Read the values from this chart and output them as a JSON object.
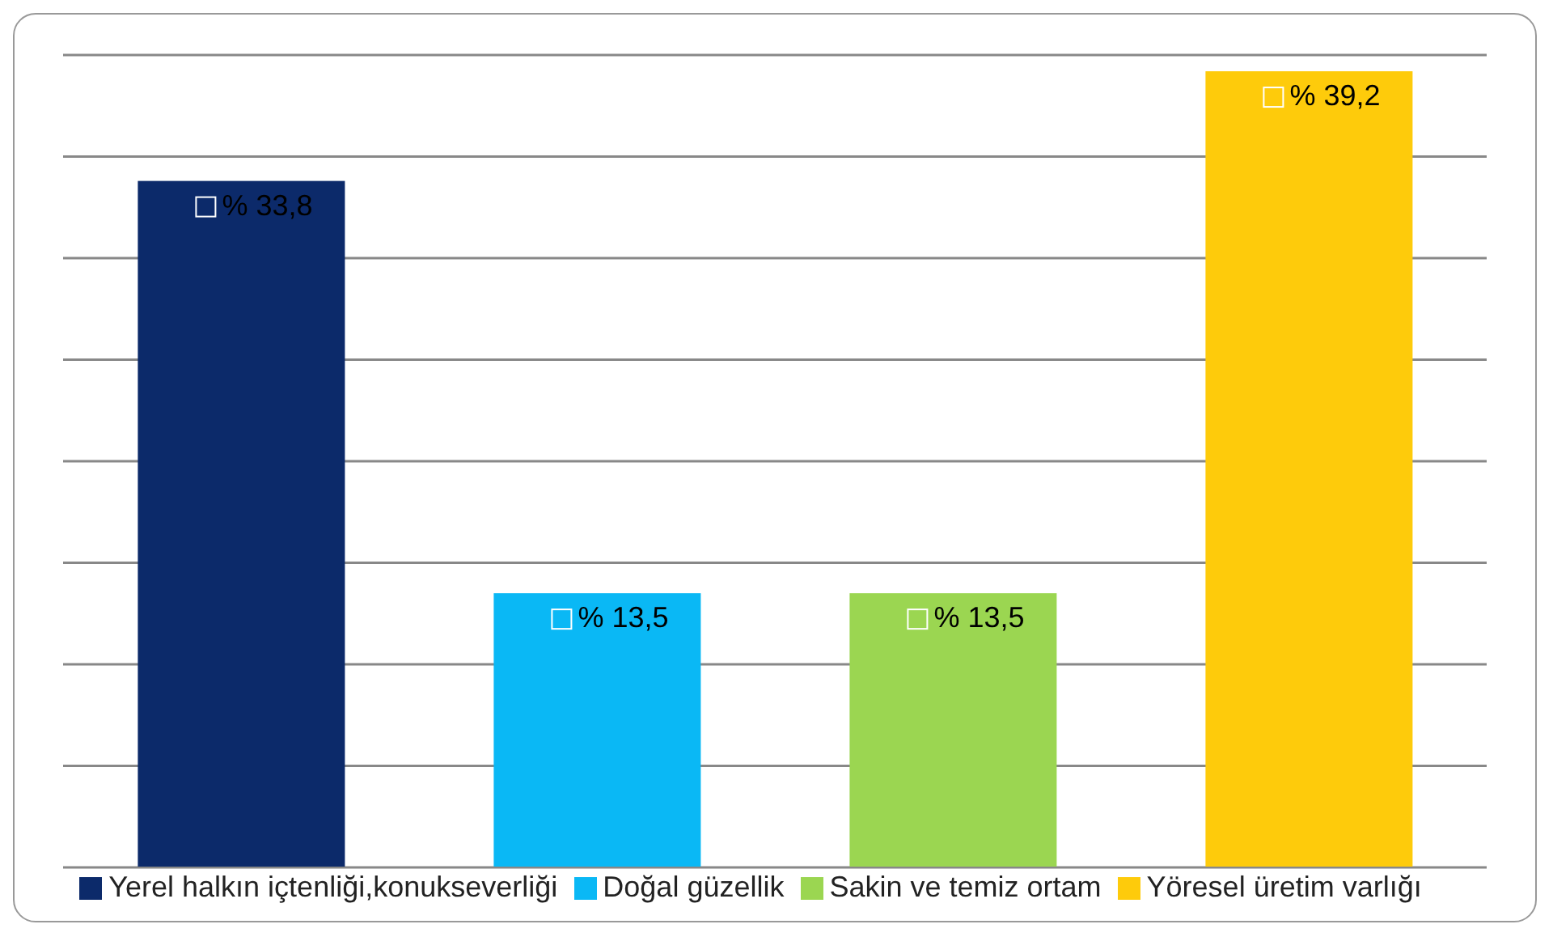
{
  "chart_data": {
    "type": "bar",
    "categories": [
      null,
      null,
      null,
      null
    ],
    "stacked": true,
    "series": [
      {
        "name": "Yerel halkın içtenliği,konukseverliği",
        "color": "#0c2a6a",
        "values": [
          33.8,
          null,
          null,
          null
        ],
        "value_labels": [
          "% 33,8",
          null,
          null,
          null
        ]
      },
      {
        "name": "Doğal güzellik",
        "color": "#0ab8f5",
        "values": [
          null,
          13.5,
          null,
          null
        ],
        "value_labels": [
          null,
          "% 13,5",
          null,
          null
        ]
      },
      {
        "name": "Sakin ve temiz ortam",
        "color": "#9bd651",
        "values": [
          null,
          null,
          13.5,
          null
        ],
        "value_labels": [
          null,
          null,
          "% 13,5",
          null
        ]
      },
      {
        "name": "Yöresel üretim varlığı",
        "color": "#fecb0b",
        "values": [
          null,
          null,
          null,
          39.2
        ],
        "value_labels": [
          null,
          null,
          null,
          "% 39,2"
        ]
      }
    ],
    "ylim": [
      0,
      40
    ],
    "grid": "y",
    "legend": "bottom",
    "tick_labels": false
  }
}
